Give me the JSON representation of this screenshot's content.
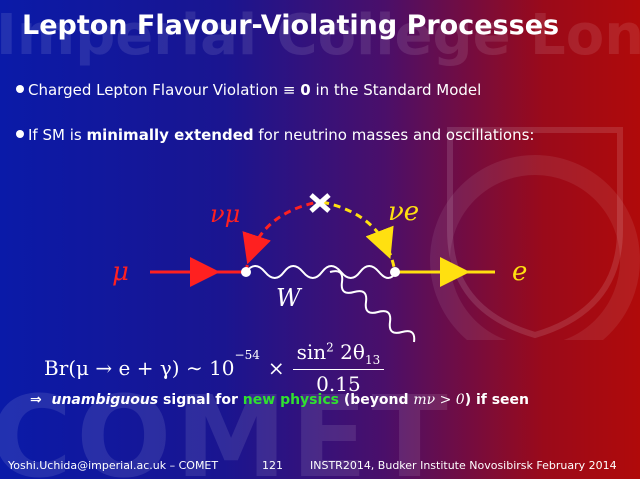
{
  "watermark": {
    "college": "Imperial College London",
    "experiment": "COMET"
  },
  "title": "Lepton Flavour-Violating Processes",
  "bullets": [
    {
      "parts": [
        "Charged Lepton Flavour Violation ≡ ",
        "0",
        " in the Standard Model"
      ]
    },
    {
      "parts": [
        "If SM is ",
        "minimally extended",
        " for neutrino masses and oscillations:"
      ]
    }
  ],
  "diagram": {
    "nu_mu": "νμ",
    "nu_e": "νe",
    "muon": "μ",
    "electron": "e",
    "boson": "W"
  },
  "formula": {
    "lhs": "Br(μ → e + γ) ∼ 10",
    "exponent": "−54",
    "times": "×",
    "numerator": "sin",
    "numerator_power": "2",
    "numerator_angle": "2θ",
    "numerator_index": "13",
    "denominator": "0.15"
  },
  "conclusion": {
    "arrow": "⇒",
    "emphasis": "unambiguous",
    "text1": " signal for ",
    "highlight": "new physics",
    "text2": " (beyond ",
    "math": "mν > 0",
    "text3": ") if seen"
  },
  "footer": {
    "left": "Yoshi.Uchida@imperial.ac.uk – COMET",
    "page": "121",
    "right": "INSTR2014, Budker Institute Novosibirsk February 2014"
  }
}
